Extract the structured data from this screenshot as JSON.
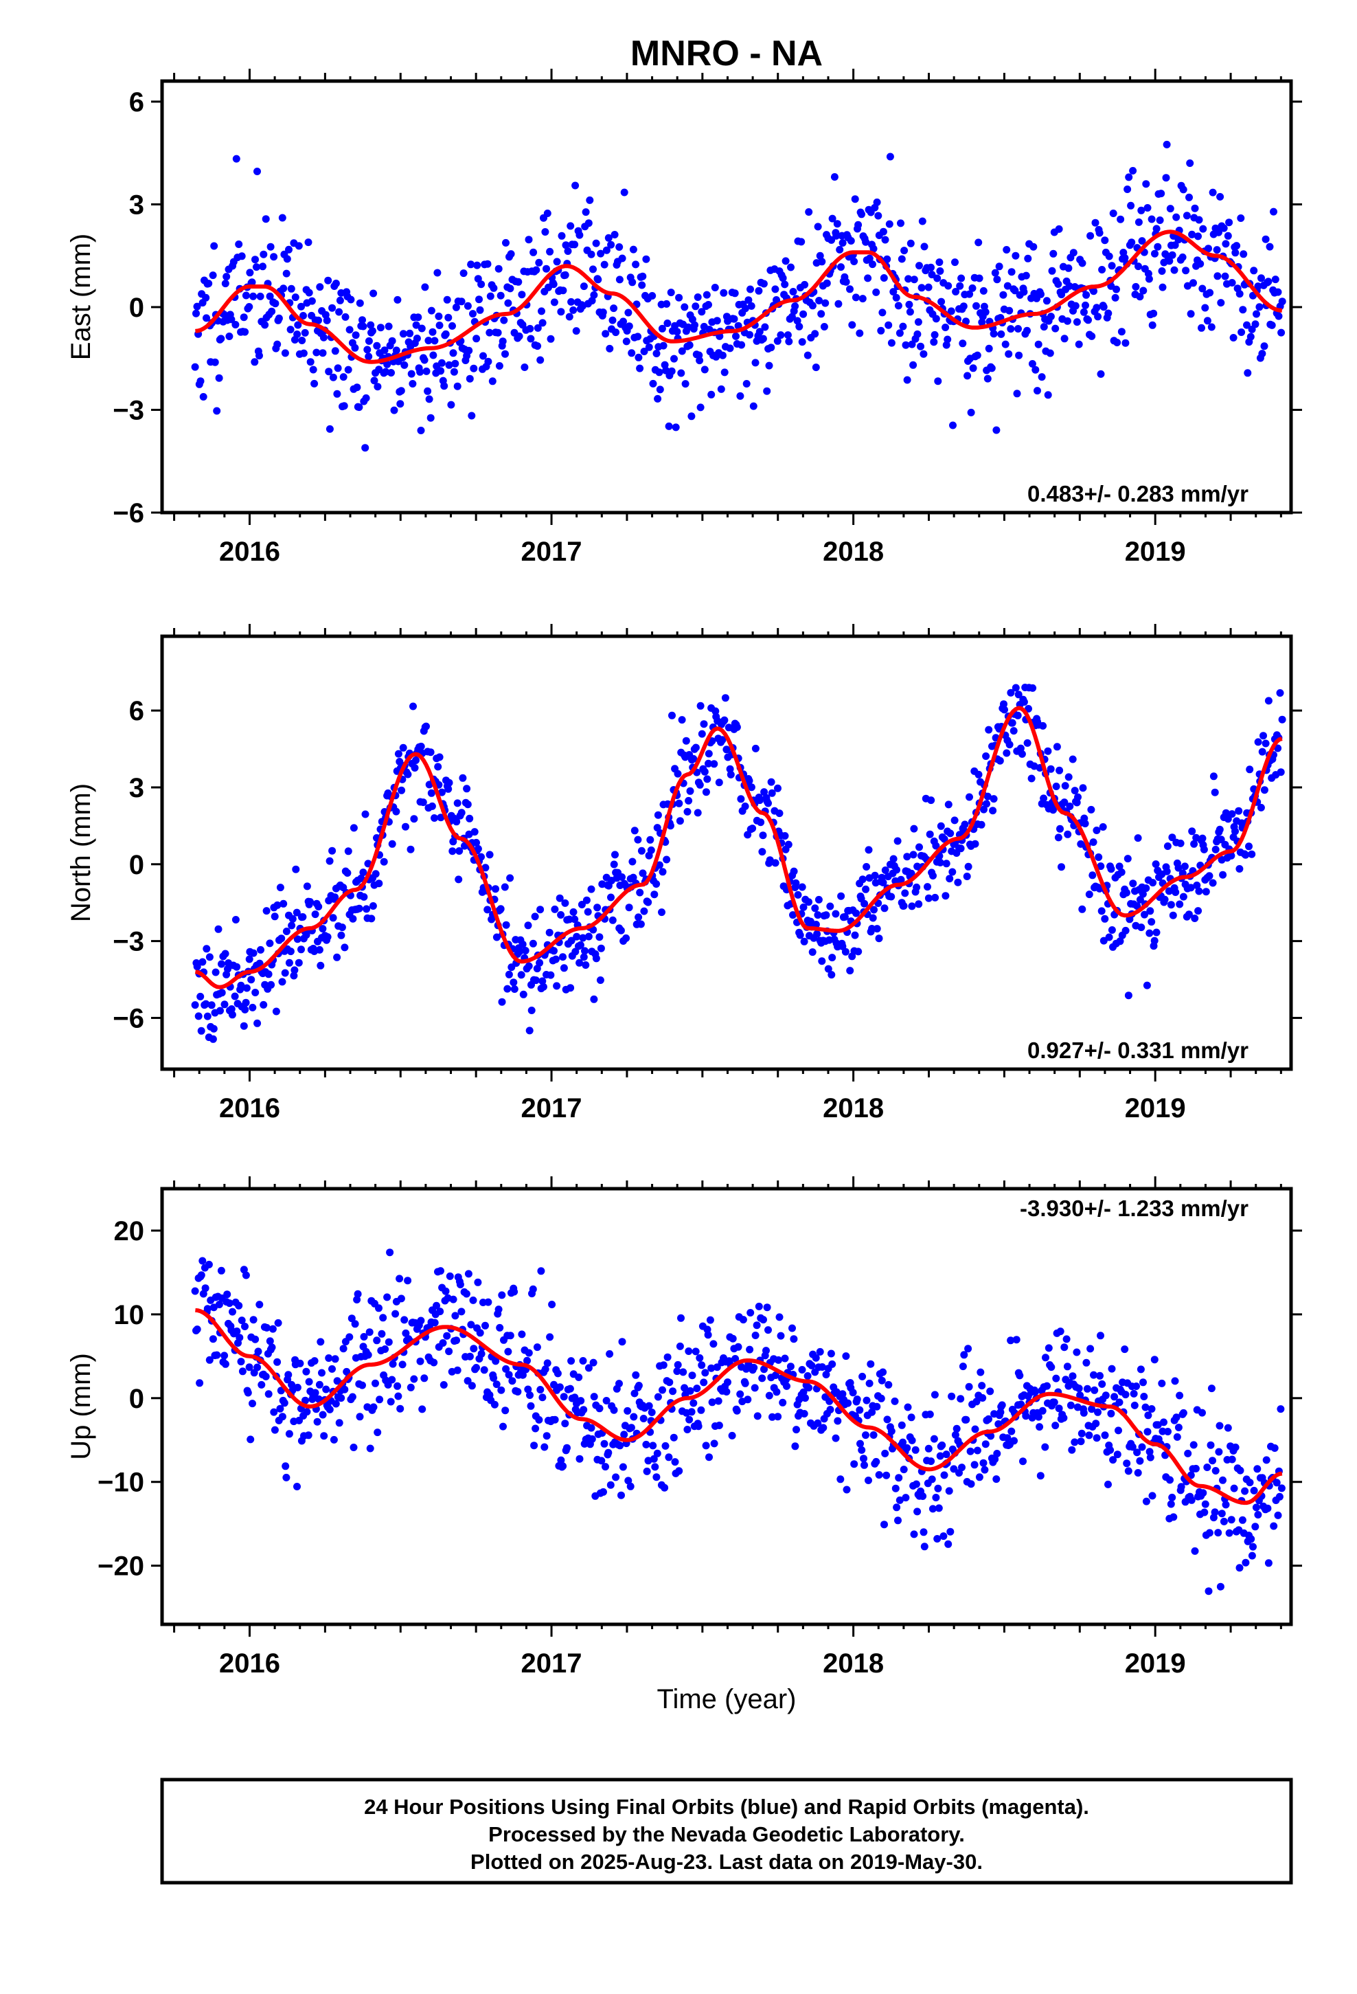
{
  "title": "MNRO - NA",
  "colors": {
    "final_orbits": "#0000ff",
    "rapid_orbits": "#ff00ff",
    "model": "#ff0000",
    "frame": "#000000"
  },
  "xlabel": "Time (year)",
  "footer": {
    "line1": "24 Hour Positions Using Final Orbits (blue) and Rapid Orbits (magenta).",
    "line2": "Processed by the Nevada Geodetic Laboratory.",
    "line3": "Plotted on 2025-Aug-23. Last data on 2019-May-30."
  },
  "chart_data": [
    {
      "type": "scatter",
      "name": "east",
      "ylabel": "East (mm)",
      "xlim": [
        2015.71,
        2019.45
      ],
      "ylim": [
        -6,
        6.6
      ],
      "yticks": [
        -6,
        -3,
        0,
        3,
        6
      ],
      "ytick_labels": [
        "−6",
        "−3",
        "0",
        "3",
        "6"
      ],
      "xticks": [
        2016,
        2017,
        2018,
        2019
      ],
      "xtick_labels": [
        "2016",
        "2017",
        "2018",
        "2019"
      ],
      "rate_text": "0.483+/- 0.283 mm/yr",
      "rate_position": "bottom-right",
      "model": {
        "x": [
          2015.82,
          2016.0,
          2016.05,
          2016.2,
          2016.4,
          2016.6,
          2016.85,
          2017.05,
          2017.2,
          2017.4,
          2017.6,
          2017.8,
          2018.0,
          2018.05,
          2018.2,
          2018.4,
          2018.6,
          2018.8,
          2019.05,
          2019.2,
          2019.42
        ],
        "y": [
          -0.7,
          0.6,
          0.6,
          -0.5,
          -1.6,
          -1.2,
          -0.2,
          1.2,
          0.4,
          -1.0,
          -0.7,
          0.2,
          1.6,
          1.6,
          0.3,
          -0.6,
          -0.2,
          0.6,
          2.2,
          1.5,
          -0.1
        ]
      },
      "scatter": {
        "n": 1050,
        "noise": 1.1,
        "seed": 11
      }
    },
    {
      "type": "scatter",
      "name": "north",
      "ylabel": "North (mm)",
      "xlim": [
        2015.71,
        2019.45
      ],
      "ylim": [
        -8,
        8.9
      ],
      "yticks": [
        -6,
        -3,
        0,
        3,
        6
      ],
      "ytick_labels": [
        "−6",
        "−3",
        "0",
        "3",
        "6"
      ],
      "xticks": [
        2016,
        2017,
        2018,
        2019
      ],
      "xtick_labels": [
        "2016",
        "2017",
        "2018",
        "2019"
      ],
      "rate_text": "0.927+/- 0.331 mm/yr",
      "rate_position": "bottom-right",
      "model": {
        "x": [
          2015.82,
          2015.9,
          2016.0,
          2016.2,
          2016.35,
          2016.55,
          2016.7,
          2016.9,
          2017.1,
          2017.3,
          2017.45,
          2017.55,
          2017.7,
          2017.85,
          2017.95,
          2018.15,
          2018.35,
          2018.55,
          2018.7,
          2018.9,
          2019.1,
          2019.25,
          2019.42
        ],
        "y": [
          -4.2,
          -4.8,
          -4.2,
          -2.5,
          -1.0,
          4.3,
          1.0,
          -3.8,
          -2.5,
          -0.8,
          3.5,
          5.3,
          2.0,
          -2.5,
          -2.6,
          -0.8,
          1.0,
          6.1,
          2.0,
          -2.0,
          -0.5,
          0.5,
          4.9
        ]
      },
      "scatter": {
        "n": 1050,
        "noise": 1.0,
        "seed": 23
      }
    },
    {
      "type": "scatter",
      "name": "up",
      "ylabel": "Up (mm)",
      "xlim": [
        2015.71,
        2019.45
      ],
      "ylim": [
        -27,
        25
      ],
      "yticks": [
        -20,
        -10,
        0,
        10,
        20
      ],
      "ytick_labels": [
        "−20",
        "−10",
        "0",
        "10",
        "20"
      ],
      "xticks": [
        2016,
        2017,
        2018,
        2019
      ],
      "xtick_labels": [
        "2016",
        "2017",
        "2018",
        "2019"
      ],
      "rate_text": "-3.930+/- 1.233 mm/yr",
      "rate_position": "top-right",
      "model": {
        "x": [
          2015.82,
          2016.0,
          2016.2,
          2016.4,
          2016.65,
          2016.9,
          2017.1,
          2017.25,
          2017.45,
          2017.65,
          2017.85,
          2018.05,
          2018.25,
          2018.45,
          2018.65,
          2018.85,
          2019.0,
          2019.15,
          2019.3,
          2019.42
        ],
        "y": [
          10.5,
          5.0,
          -1.0,
          4.0,
          8.5,
          4.0,
          -2.5,
          -5.0,
          0.0,
          4.5,
          2.0,
          -3.5,
          -8.5,
          -4.0,
          0.5,
          -1.0,
          -5.5,
          -10.5,
          -12.5,
          -9.0
        ]
      },
      "scatter": {
        "n": 1050,
        "noise": 4.2,
        "seed": 37
      }
    }
  ]
}
